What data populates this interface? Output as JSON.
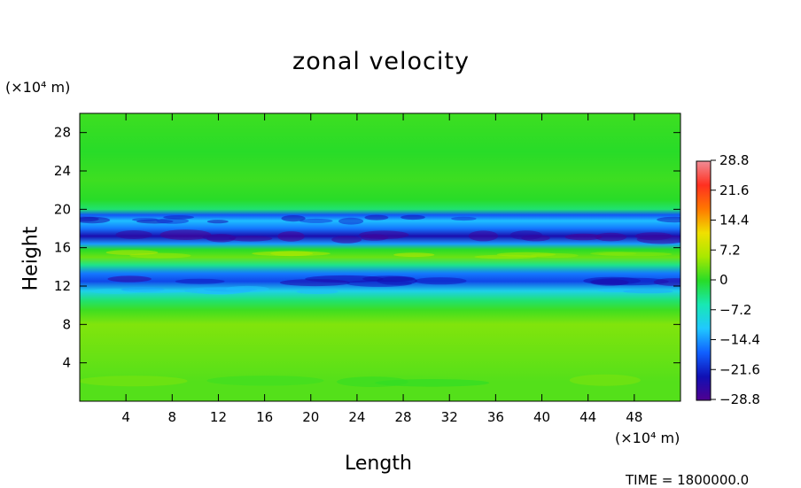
{
  "chart_data": {
    "type": "heatmap",
    "title": "zonal velocity",
    "xlabel": "Length",
    "ylabel": "Height",
    "x_unit": "(×10⁴ m)",
    "y_unit": "(×10⁴ m)",
    "xlim": [
      0,
      52
    ],
    "ylim": [
      0,
      30
    ],
    "x_ticks": [
      4,
      8,
      12,
      16,
      20,
      24,
      28,
      32,
      36,
      40,
      44,
      48
    ],
    "y_ticks": [
      4,
      8,
      12,
      16,
      20,
      24,
      28
    ],
    "colorbar": {
      "ticks": [
        28.8,
        21.6,
        14.4,
        7.2,
        0,
        -7.2,
        -14.4,
        -21.6,
        -28.8
      ],
      "tick_labels": [
        "28.8",
        "21.6",
        "14.4",
        "7.2",
        "0",
        "−7.2",
        "−14.4",
        "−21.6",
        "−28.8"
      ],
      "range": [
        -28.8,
        28.8
      ],
      "colors": [
        "#f08c96",
        "#ff3020",
        "#ff7800",
        "#f0e000",
        "#a8e800",
        "#28dc28",
        "#18e8b4",
        "#20c8ff",
        "#1060ff",
        "#1010b4",
        "#500090"
      ]
    },
    "vertical_profile": [
      {
        "height": 0,
        "value": 2
      },
      {
        "height": 2,
        "value": 2
      },
      {
        "height": 5,
        "value": 3
      },
      {
        "height": 8,
        "value": 4
      },
      {
        "height": 9.5,
        "value": 1
      },
      {
        "height": 10.5,
        "value": -3
      },
      {
        "height": 11.5,
        "value": -10
      },
      {
        "height": 12.5,
        "value": -19
      },
      {
        "height": 13.3,
        "value": -16
      },
      {
        "height": 14.2,
        "value": -4
      },
      {
        "height": 15,
        "value": 3
      },
      {
        "height": 15.8,
        "value": 0
      },
      {
        "height": 16.4,
        "value": -14
      },
      {
        "height": 17.2,
        "value": -24
      },
      {
        "height": 18,
        "value": -16
      },
      {
        "height": 18.8,
        "value": -12
      },
      {
        "height": 19.4,
        "value": -18
      },
      {
        "height": 20,
        "value": -3
      },
      {
        "height": 21,
        "value": 0
      },
      {
        "height": 23,
        "value": 1
      },
      {
        "height": 26,
        "value": 0
      },
      {
        "height": 30,
        "value": 1
      }
    ]
  },
  "footer": {
    "time_label": "TIME = 1800000.0"
  }
}
